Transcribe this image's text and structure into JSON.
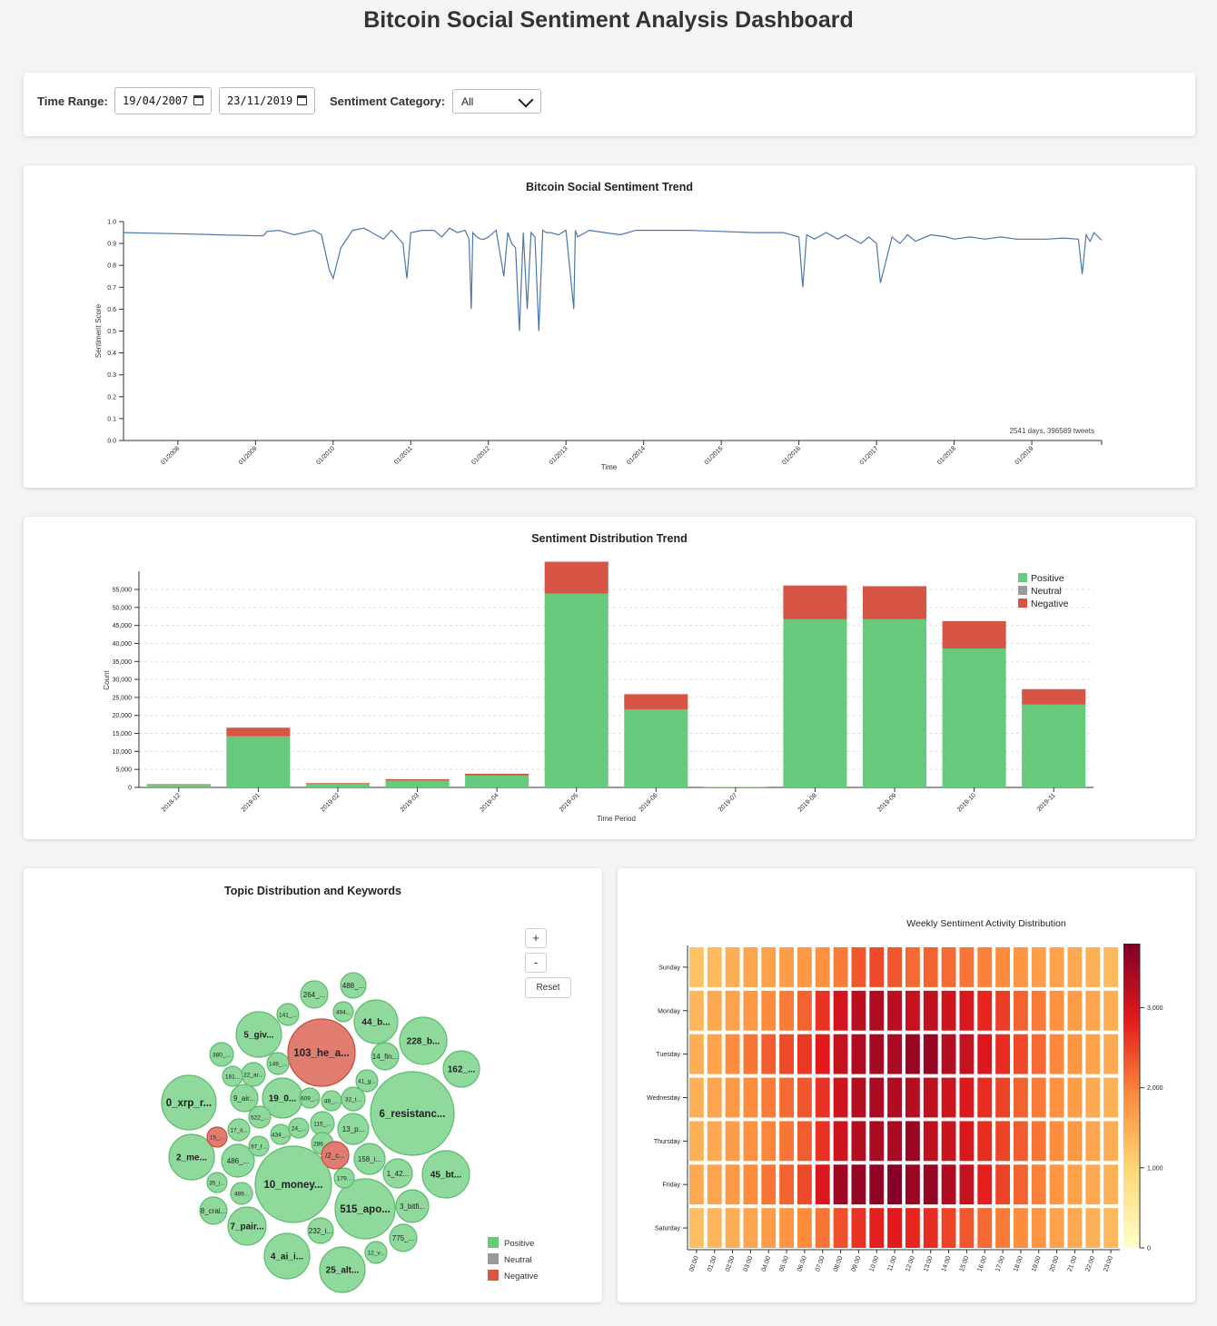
{
  "title": "Bitcoin Social Sentiment Analysis Dashboard",
  "controls": {
    "time_range_label": "Time Range:",
    "start_date": "19/04/2007",
    "end_date": "23/11/2019",
    "category_label": "Sentiment Category:",
    "category_value": "All"
  },
  "colors": {
    "positive": "#66c97b",
    "neutral": "#999999",
    "negative": "#d65544",
    "line": "#4a77ab"
  },
  "chart_data": [
    {
      "type": "line",
      "title": "Bitcoin Social Sentiment Trend",
      "xlabel": "Time",
      "ylabel": "Sentiment Score",
      "ylim": [
        0,
        1
      ],
      "yticks": [
        "0.0",
        "0.1",
        "0.2",
        "0.3",
        "0.4",
        "0.5",
        "0.6",
        "0.7",
        "0.8",
        "0.9",
        "1.0"
      ],
      "xticks": [
        "01/2008",
        "01/2009",
        "01/2010",
        "01/2011",
        "01/2012",
        "01/2013",
        "01/2014",
        "01/2015",
        "01/2016",
        "01/2017",
        "01/2018",
        "01/2019"
      ],
      "annotation": "2541 days, 396589 tweets",
      "x": [
        2007.3,
        2008.0,
        2008.5,
        2009.05,
        2009.1,
        2009.15,
        2009.3,
        2009.5,
        2009.75,
        2009.85,
        2009.95,
        2010.0,
        2010.1,
        2010.25,
        2010.4,
        2010.5,
        2010.65,
        2010.75,
        2010.9,
        2010.95,
        2011.0,
        2011.15,
        2011.3,
        2011.4,
        2011.5,
        2011.6,
        2011.7,
        2011.75,
        2011.78,
        2011.8,
        2011.85,
        2011.9,
        2011.95,
        2012.0,
        2012.1,
        2012.2,
        2012.25,
        2012.3,
        2012.35,
        2012.4,
        2012.45,
        2012.5,
        2012.55,
        2012.6,
        2012.65,
        2012.7,
        2012.75,
        2012.8,
        2012.9,
        2013.0,
        2013.1,
        2013.12,
        2013.15,
        2013.3,
        2013.5,
        2013.7,
        2013.9,
        2014.0,
        2014.3,
        2014.6,
        2015.0,
        2015.4,
        2015.8,
        2016.0,
        2016.05,
        2016.1,
        2016.2,
        2016.35,
        2016.5,
        2016.6,
        2016.8,
        2016.9,
        2017.0,
        2017.05,
        2017.2,
        2017.3,
        2017.4,
        2017.5,
        2017.7,
        2017.9,
        2018.0,
        2018.2,
        2018.4,
        2018.6,
        2018.8,
        2019.0,
        2019.2,
        2019.4,
        2019.6,
        2019.65,
        2019.7,
        2019.75,
        2019.8,
        2019.9
      ],
      "y": [
        0.95,
        0.945,
        0.94,
        0.935,
        0.935,
        0.955,
        0.96,
        0.94,
        0.96,
        0.94,
        0.78,
        0.74,
        0.88,
        0.96,
        0.97,
        0.95,
        0.92,
        0.96,
        0.9,
        0.74,
        0.95,
        0.96,
        0.96,
        0.93,
        0.97,
        0.95,
        0.96,
        0.92,
        0.6,
        0.95,
        0.93,
        0.92,
        0.92,
        0.93,
        0.96,
        0.75,
        0.95,
        0.9,
        0.88,
        0.5,
        0.95,
        0.6,
        0.95,
        0.93,
        0.5,
        0.96,
        0.95,
        0.95,
        0.94,
        0.96,
        0.6,
        0.96,
        0.93,
        0.96,
        0.95,
        0.94,
        0.96,
        0.96,
        0.96,
        0.96,
        0.955,
        0.95,
        0.95,
        0.93,
        0.7,
        0.94,
        0.92,
        0.95,
        0.92,
        0.94,
        0.9,
        0.93,
        0.9,
        0.72,
        0.93,
        0.9,
        0.94,
        0.91,
        0.94,
        0.93,
        0.92,
        0.93,
        0.92,
        0.93,
        0.92,
        0.92,
        0.92,
        0.925,
        0.92,
        0.76,
        0.94,
        0.91,
        0.95,
        0.915
      ]
    },
    {
      "type": "bar",
      "title": "Sentiment Distribution Trend",
      "xlabel": "Time Period",
      "ylabel": "Count",
      "ylim": [
        0,
        55000
      ],
      "yticks": [
        "0",
        "5,000",
        "10,000",
        "15,000",
        "20,000",
        "25,000",
        "30,000",
        "35,000",
        "40,000",
        "45,000",
        "50,000",
        "55,000"
      ],
      "categories": [
        "2018-12",
        "2019-01",
        "2019-02",
        "2019-03",
        "2019-04",
        "2019-05",
        "2019-06",
        "2019-07",
        "2019-08",
        "2019-09",
        "2019-10",
        "2019-11"
      ],
      "series": [
        {
          "name": "Positive",
          "values": [
            700,
            14200,
            1000,
            1900,
            3300,
            53800,
            21700,
            100,
            46700,
            46700,
            38600,
            23000
          ]
        },
        {
          "name": "Neutral",
          "values": [
            0,
            0,
            0,
            0,
            0,
            0,
            0,
            0,
            0,
            0,
            0,
            0
          ]
        },
        {
          "name": "Negative",
          "values": [
            200,
            2400,
            200,
            400,
            500,
            8900,
            4200,
            20,
            9400,
            9200,
            7600,
            4300
          ]
        }
      ],
      "legend": "top-right"
    },
    {
      "type": "scatter",
      "title": "Topic Distribution and Keywords",
      "topics": [
        {
          "label": "103_he_a...",
          "s": "negative"
        },
        {
          "label": "6_resistanc...",
          "s": "positive"
        },
        {
          "label": "10_money...",
          "s": "positive"
        },
        {
          "label": "0_xrp_r...",
          "s": "positive"
        },
        {
          "label": "515_apo...",
          "s": "positive"
        },
        {
          "label": "228_b...",
          "s": "positive"
        },
        {
          "label": "2_me...",
          "s": "positive"
        },
        {
          "label": "45_bt...",
          "s": "positive"
        },
        {
          "label": "4_ai_i...",
          "s": "positive"
        },
        {
          "label": "25_alt...",
          "s": "positive"
        },
        {
          "label": "5_giv...",
          "s": "positive"
        },
        {
          "label": "44_b...",
          "s": "positive"
        },
        {
          "label": "7_pair...",
          "s": "positive"
        },
        {
          "label": "19_0...",
          "s": "positive"
        },
        {
          "label": "264_...",
          "s": "positive"
        },
        {
          "label": "162_...",
          "s": "positive"
        },
        {
          "label": "3_bitfi...",
          "s": "positive"
        },
        {
          "label": "486_...",
          "s": "positive"
        },
        {
          "label": "1_42...",
          "s": "positive"
        },
        {
          "label": "775_...",
          "s": "positive"
        },
        {
          "label": "13_p...",
          "s": "positive"
        },
        {
          "label": "158_i...",
          "s": "positive"
        },
        {
          "label": "8_crai...",
          "s": "positive"
        },
        {
          "label": "115_...",
          "s": "positive"
        },
        {
          "label": "232_i...",
          "s": "positive"
        },
        {
          "label": "12_v...",
          "s": "positive"
        },
        {
          "label": "9_air...",
          "s": "positive"
        },
        {
          "label": "488_...",
          "s": "positive"
        },
        {
          "label": "380_...",
          "s": "positive"
        },
        {
          "label": "14_fin...",
          "s": "positive"
        },
        {
          "label": "22_ar...",
          "s": "positive"
        },
        {
          "label": "41_g...",
          "s": "positive"
        },
        {
          "label": "17_li...",
          "s": "positive"
        },
        {
          "label": "141_...",
          "s": "positive"
        },
        {
          "label": "494...",
          "s": "positive"
        },
        {
          "label": "149_...",
          "s": "positive"
        },
        {
          "label": "181...",
          "s": "positive"
        },
        {
          "label": "522_...",
          "s": "positive"
        },
        {
          "label": "609_...",
          "s": "positive"
        },
        {
          "label": "49_...",
          "s": "positive"
        },
        {
          "label": "32_t...",
          "s": "positive"
        },
        {
          "label": "15_...",
          "s": "negative"
        },
        {
          "label": "434_...",
          "s": "positive"
        },
        {
          "label": "24_...",
          "s": "positive"
        },
        {
          "label": "286_...",
          "s": "positive"
        },
        {
          "label": "/2_c...",
          "s": "negative"
        },
        {
          "label": "97_f...",
          "s": "positive"
        },
        {
          "label": "35_i...",
          "s": "positive"
        },
        {
          "label": "489...",
          "s": "positive"
        },
        {
          "label": "179...",
          "s": "positive"
        }
      ],
      "legend": [
        "Positive",
        "Neutral",
        "Negative"
      ]
    },
    {
      "type": "heatmap",
      "title": "Weekly Sentiment Activity Distribution",
      "days": [
        "Sunday",
        "Monday",
        "Tuesday",
        "Wednesday",
        "Thursday",
        "Friday",
        "Saturday"
      ],
      "hours": [
        "00:00",
        "01:00",
        "02:00",
        "03:00",
        "04:00",
        "05:00",
        "06:00",
        "07:00",
        "08:00",
        "09:00",
        "10:00",
        "11:00",
        "12:00",
        "13:00",
        "14:00",
        "15:00",
        "16:00",
        "17:00",
        "18:00",
        "19:00",
        "20:00",
        "21:00",
        "22:00",
        "23:00"
      ],
      "zlim": [
        0,
        3800
      ],
      "colorbar_ticks": [
        "0",
        "1,000",
        "2,000",
        "3,000"
      ],
      "values": [
        [
          1250,
          1350,
          1500,
          1600,
          1650,
          1700,
          1750,
          1850,
          2050,
          2350,
          2450,
          2350,
          2200,
          2250,
          2200,
          2100,
          2000,
          1900,
          1800,
          1700,
          1650,
          1550,
          1450,
          1350
        ],
        [
          1400,
          1550,
          1650,
          1750,
          1900,
          2050,
          2250,
          2650,
          3000,
          3250,
          3350,
          3250,
          3150,
          3200,
          3050,
          2950,
          2750,
          2550,
          2250,
          2050,
          1850,
          1700,
          1600,
          1500
        ],
        [
          1500,
          1650,
          1900,
          2100,
          2300,
          2450,
          2600,
          2850,
          3150,
          3350,
          3450,
          3400,
          3550,
          3600,
          3300,
          3150,
          2950,
          2700,
          2450,
          2200,
          1950,
          1800,
          1650,
          1550
        ],
        [
          1450,
          1600,
          1750,
          1900,
          2050,
          2200,
          2350,
          2650,
          3050,
          3300,
          3400,
          3350,
          3300,
          3200,
          3050,
          2900,
          2700,
          2500,
          2250,
          2050,
          1850,
          1700,
          1550,
          1450
        ],
        [
          1450,
          1550,
          1700,
          1850,
          1950,
          2100,
          2300,
          2650,
          3050,
          3300,
          3400,
          3400,
          3550,
          3200,
          3100,
          2950,
          2700,
          2500,
          2300,
          2100,
          1900,
          1750,
          1600,
          1500
        ],
        [
          1550,
          1600,
          1750,
          1900,
          2100,
          2250,
          2450,
          2950,
          3500,
          3600,
          3650,
          3750,
          3550,
          3600,
          3350,
          3150,
          2800,
          2500,
          2250,
          2000,
          1800,
          1650,
          1550,
          1450
        ],
        [
          1300,
          1400,
          1500,
          1600,
          1700,
          1800,
          1900,
          2100,
          2400,
          2650,
          2800,
          2850,
          2750,
          2700,
          2500,
          2350,
          2200,
          2050,
          1900,
          1800,
          1650,
          1550,
          1450,
          1350
        ]
      ]
    }
  ]
}
